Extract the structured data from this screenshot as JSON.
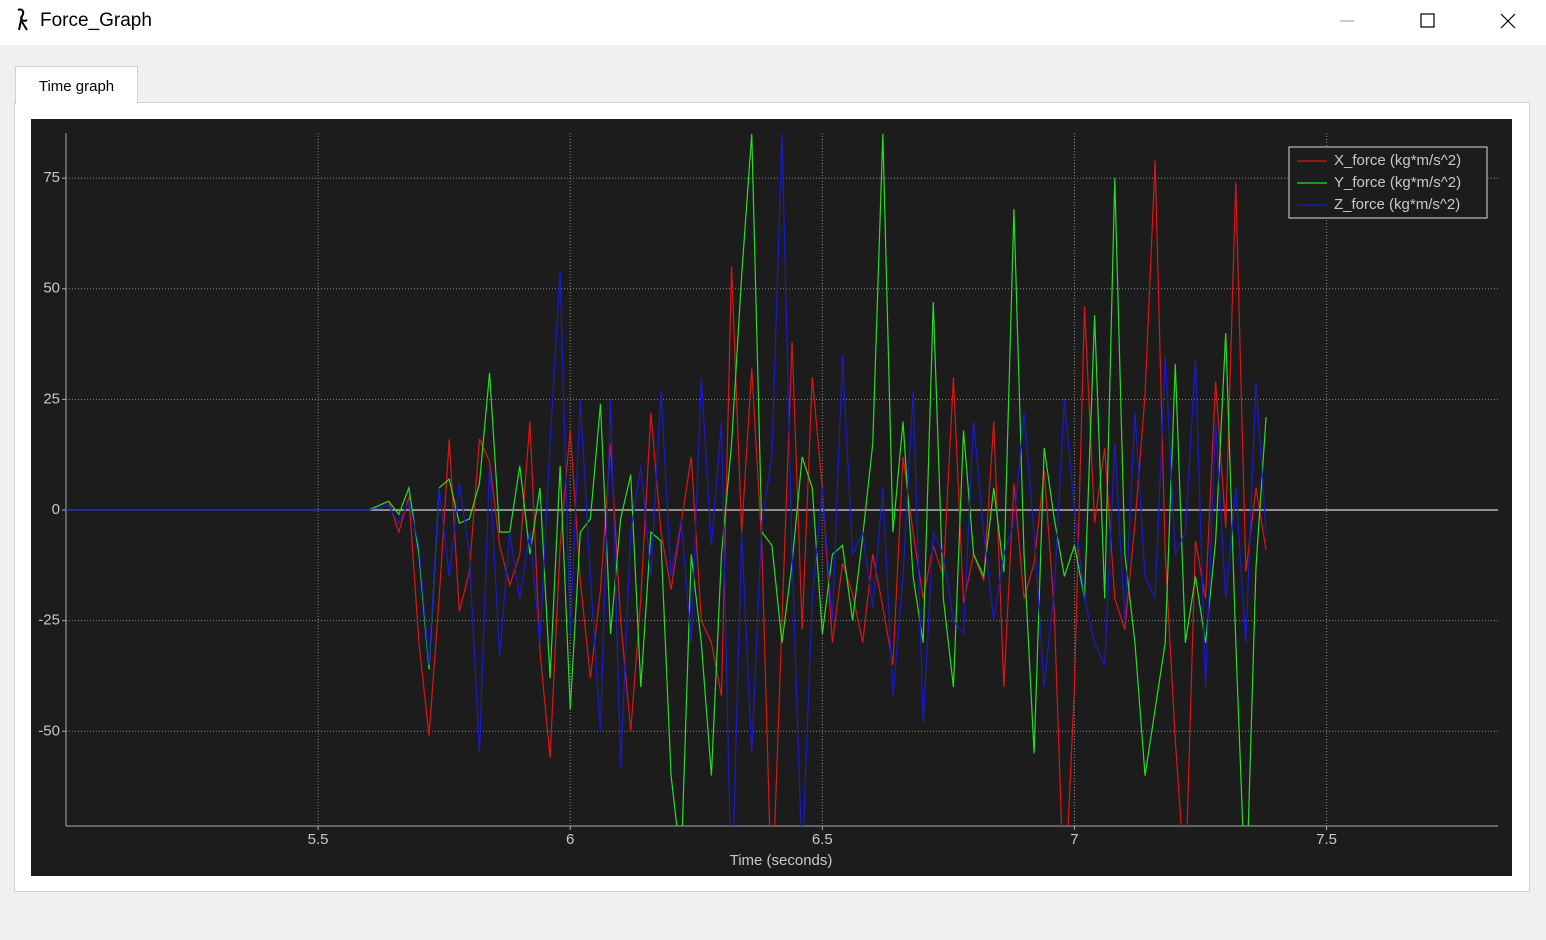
{
  "window": {
    "title": "Force_Graph",
    "tab": "Time graph"
  },
  "chart_data": {
    "type": "line",
    "xlabel": "Time (seconds)",
    "x": [
      5.0,
      5.1,
      5.2,
      5.3,
      5.4,
      5.5,
      5.6,
      5.64,
      5.66,
      5.68,
      5.7,
      5.72,
      5.74,
      5.76,
      5.78,
      5.8,
      5.82,
      5.84,
      5.86,
      5.88,
      5.9,
      5.92,
      5.94,
      5.96,
      5.98,
      6.0,
      6.02,
      6.04,
      6.06,
      6.08,
      6.1,
      6.12,
      6.14,
      6.16,
      6.18,
      6.2,
      6.22,
      6.24,
      6.26,
      6.28,
      6.3,
      6.32,
      6.34,
      6.36,
      6.38,
      6.4,
      6.42,
      6.44,
      6.46,
      6.48,
      6.5,
      6.52,
      6.54,
      6.56,
      6.58,
      6.6,
      6.62,
      6.64,
      6.66,
      6.68,
      6.7,
      6.72,
      6.74,
      6.76,
      6.78,
      6.8,
      6.82,
      6.84,
      6.86,
      6.88,
      6.9,
      6.92,
      6.94,
      6.96,
      6.98,
      7.0,
      7.02,
      7.04,
      7.06,
      7.08,
      7.1,
      7.12,
      7.14,
      7.16,
      7.18,
      7.2,
      7.22,
      7.24,
      7.26,
      7.28,
      7.3,
      7.32,
      7.34,
      7.36,
      7.38
    ],
    "series": [
      {
        "name": "X_force (kg*m/s^2)",
        "color": "#e01414",
        "values": [
          0,
          0,
          0,
          0,
          0,
          0,
          0,
          2,
          -5,
          3,
          -30,
          -51,
          -20,
          16,
          -23,
          -14,
          16,
          11,
          -8,
          -17,
          -10,
          20,
          -32,
          -56,
          -8,
          18,
          -16,
          -38,
          -18,
          15,
          -25,
          -50,
          -20,
          22,
          -5,
          -18,
          -3,
          12,
          -25,
          -30,
          -42,
          55,
          -5,
          32,
          -8,
          -90,
          -25,
          38,
          -27,
          30,
          5,
          -30,
          -12,
          -19,
          -30,
          -10,
          -22,
          -35,
          12,
          -5,
          -20,
          -8,
          -15,
          30,
          -21,
          -10,
          -16,
          20,
          -40,
          6,
          -20,
          -12,
          9,
          -23,
          -90,
          -40,
          46,
          -3,
          14,
          -20,
          -27,
          -3,
          26,
          79,
          -10,
          -52,
          -85,
          -7,
          -20,
          29,
          -4,
          74,
          -14,
          5,
          -9
        ]
      },
      {
        "name": "Y_force (kg*m/s^2)",
        "color": "#22e022",
        "values": [
          0,
          0,
          0,
          0,
          0,
          0,
          0,
          2,
          -1,
          5,
          -10,
          -36,
          5,
          7,
          -3,
          -2,
          6,
          31,
          -5,
          -5,
          10,
          -10,
          5,
          -38,
          10,
          -45,
          -5,
          -2,
          24,
          -28,
          -2,
          8,
          -40,
          -5,
          -7,
          -60,
          -80,
          -10,
          -30,
          -60,
          -10,
          15,
          53,
          85,
          -5,
          -8,
          -30,
          -12,
          12,
          5,
          -28,
          -10,
          -8,
          -25,
          -6,
          15,
          85,
          -5,
          20,
          -15,
          -30,
          47,
          -20,
          -40,
          18,
          -10,
          -15,
          5,
          -14,
          68,
          -10,
          -55,
          14,
          -2,
          -15,
          -8,
          -20,
          44,
          -20,
          75,
          -10,
          -30,
          -60,
          -45,
          -30,
          33,
          -30,
          -15,
          -30,
          -7,
          40,
          -30,
          -90,
          -13,
          21
        ]
      },
      {
        "name": "Z_force (kg*m/s^2)",
        "color": "#1a1ad0",
        "values": [
          0,
          0,
          0,
          0,
          0,
          0,
          0,
          1,
          -3,
          2,
          -8,
          -35,
          5,
          -15,
          6,
          -10,
          -55,
          10,
          -33,
          -5,
          -20,
          -5,
          -30,
          15,
          54,
          -28,
          25,
          -15,
          -50,
          25,
          -58,
          -5,
          10,
          -15,
          27,
          -15,
          -2,
          -30,
          30,
          -8,
          20,
          -90,
          -5,
          -55,
          -3,
          12,
          85,
          -10,
          -80,
          -20,
          5,
          -25,
          35,
          -10,
          -5,
          -22,
          5,
          -42,
          -15,
          27,
          -48,
          -5,
          -10,
          -25,
          -28,
          20,
          -5,
          -25,
          -10,
          -3,
          22,
          -5,
          -40,
          -18,
          25,
          0,
          -20,
          -30,
          -35,
          15,
          -25,
          22,
          -15,
          -20,
          35,
          -10,
          -5,
          34,
          -40,
          20,
          -20,
          5,
          -30,
          29,
          -5
        ]
      }
    ],
    "xlim": [
      5.0,
      7.84
    ],
    "xticks": [
      5.5,
      6,
      6.5,
      7,
      7.5
    ],
    "ylim": [
      -71.4,
      85.2
    ],
    "yticks": [
      -50,
      -25,
      0,
      25,
      50,
      75
    ],
    "grid": true,
    "legend": "top-right"
  }
}
